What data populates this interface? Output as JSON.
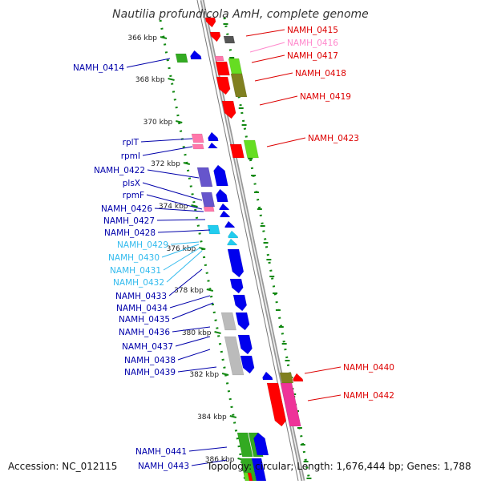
{
  "title": "Nautilia profundicola AmH, complete genome",
  "footer": {
    "accession": "Accession: NC_012115",
    "topology": "Topology: circular; Length: 1,676,444 bp; Genes: 1,788"
  },
  "colors": {
    "red": "#ff0000",
    "darkred": "#cc0000",
    "olive": "#808020",
    "lime": "#66dd22",
    "green": "#33aa22",
    "blue": "#0000ee",
    "slate": "#6655cc",
    "cyan": "#22ccee",
    "pink": "#ff77aa",
    "magenta": "#ee3399",
    "gray": "#bbbbbb",
    "darkgray": "#555555",
    "tick_green": "#118811",
    "label_blue": "#0000aa",
    "label_cyan": "#33bbee",
    "label_red": "#dd0000",
    "label_pink": "#ff88cc"
  },
  "kbp_labels": [
    "366 kbp",
    "368 kbp",
    "370 kbp",
    "372 kbp",
    "374 kbp",
    "376 kbp",
    "378 kbp",
    "380 kbp",
    "382 kbp",
    "384 kbp",
    "386 kbp"
  ],
  "right_labels": [
    {
      "text": "NAMH_0415",
      "color": "label_red"
    },
    {
      "text": "NAMH_0416",
      "color": "label_pink"
    },
    {
      "text": "NAMH_0417",
      "color": "label_red"
    },
    {
      "text": "NAMH_0418",
      "color": "label_red"
    },
    {
      "text": "NAMH_0419",
      "color": "label_red"
    },
    {
      "text": "NAMH_0423",
      "color": "label_red"
    },
    {
      "text": "NAMH_0440",
      "color": "label_red"
    },
    {
      "text": "NAMH_0442",
      "color": "label_red"
    }
  ],
  "left_labels": [
    {
      "text": "NAMH_0414",
      "color": "label_blue"
    },
    {
      "text": "rplT",
      "color": "label_blue"
    },
    {
      "text": "rpmI",
      "color": "label_blue"
    },
    {
      "text": "NAMH_0422",
      "color": "label_blue"
    },
    {
      "text": "plsX",
      "color": "label_blue"
    },
    {
      "text": "rpmF",
      "color": "label_blue"
    },
    {
      "text": "NAMH_0426",
      "color": "label_blue"
    },
    {
      "text": "NAMH_0427",
      "color": "label_blue"
    },
    {
      "text": "NAMH_0428",
      "color": "label_blue"
    },
    {
      "text": "NAMH_0429",
      "color": "label_cyan"
    },
    {
      "text": "NAMH_0430",
      "color": "label_cyan"
    },
    {
      "text": "NAMH_0431",
      "color": "label_cyan"
    },
    {
      "text": "NAMH_0432",
      "color": "label_cyan"
    },
    {
      "text": "NAMH_0433",
      "color": "label_blue"
    },
    {
      "text": "NAMH_0434",
      "color": "label_blue"
    },
    {
      "text": "NAMH_0435",
      "color": "label_blue"
    },
    {
      "text": "NAMH_0436",
      "color": "label_blue"
    },
    {
      "text": "NAMH_0437",
      "color": "label_blue"
    },
    {
      "text": "NAMH_0438",
      "color": "label_blue"
    },
    {
      "text": "NAMH_0439",
      "color": "label_blue"
    },
    {
      "text": "NAMH_0441",
      "color": "label_blue"
    },
    {
      "text": "NAMH_0443",
      "color": "label_blue"
    }
  ]
}
